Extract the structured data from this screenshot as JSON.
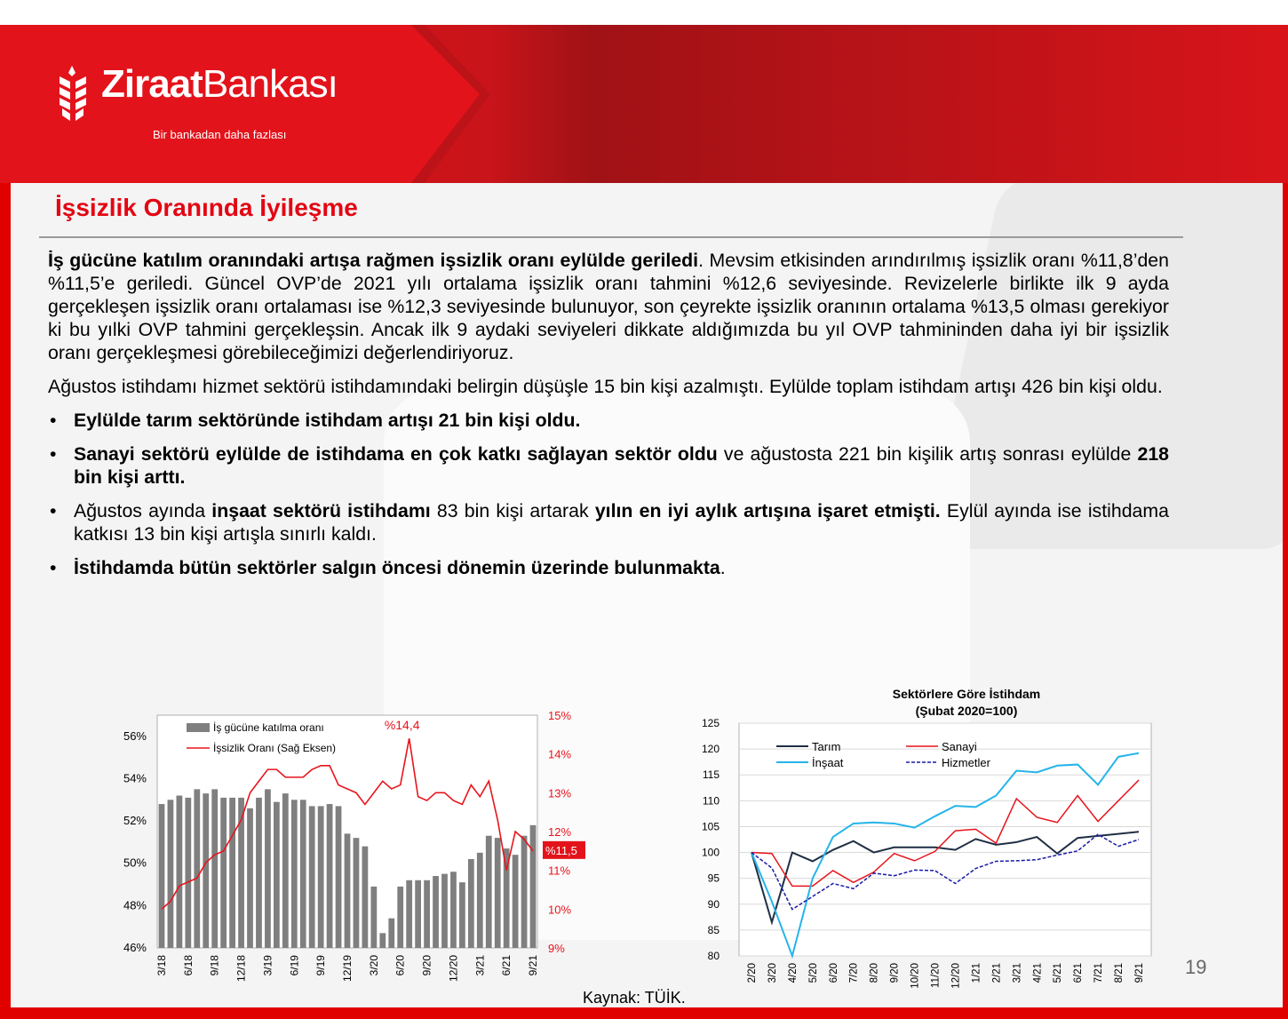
{
  "brand": {
    "name_bold": "Ziraat",
    "name_light": "Bankası",
    "tagline": "Bir bankadan daha fazlası",
    "logo_icon": "wheat-logo-icon"
  },
  "colors": {
    "brand_red": "#e30613",
    "bar_gray": "#7f7f7f",
    "tarim": "#1f2f45",
    "sanayi": "#e8141c",
    "insaat": "#25b4ea",
    "hizmetler": "#1a1aa8"
  },
  "title": "İşsizlik Oranında İyileşme",
  "para1": {
    "bold": "İş gücüne katılım oranındaki artışa rağmen işsizlik oranı eylülde geriledi",
    "rest": ". Mevsim etkisinden arındırılmış işsizlik oranı %11,8’den %11,5’e geriledi. Güncel OVP’de 2021 yılı ortalama işsizlik oranı tahmini %12,6 seviyesinde. Revizelerle birlikte ilk 9 ayda gerçekleşen işsizlik oranı ortalaması ise %12,3 seviyesinde bulunuyor, son çeyrekte işsizlik oranının ortalama %13,5 olması gerekiyor ki bu yılki OVP tahmini gerçekleşsin. Ancak ilk 9 aydaki seviyeleri dikkate aldığımızda bu yıl OVP tahmininden daha iyi bir işsizlik oranı gerçekleşmesi görebileceğimizi değerlendiriyoruz."
  },
  "para2": "Ağustos istihdamı hizmet sektörü istihdamındaki belirgin düşüşle 15 bin kişi azalmıştı. Eylülde toplam istihdam artışı 426 bin kişi oldu.",
  "bullet_char": "•",
  "bullets": {
    "b1": {
      "bold": "Eylülde tarım sektöründe istihdam artışı 21 bin kişi oldu."
    },
    "b2": {
      "bold1": "Sanayi sektörü eylülde de istihdama en çok katkı sağlayan sektör oldu",
      "normal1": " ve ağustosta 221 bin kişilik artış sonrası eylülde ",
      "bold2": "218 bin kişi arttı."
    },
    "b3": {
      "normal1": "Ağustos ayında ",
      "bold1": "inşaat sektörü istihdamı",
      "normal2": " 83 bin kişi artarak ",
      "bold2": "yılın en iyi aylık artışına işaret etmişti.",
      "normal3": " Eylül ayında ise istihdama katkısı 13 bin kişi artışla sınırlı kaldı."
    },
    "b4": {
      "bold": "İstihdamda bütün sektörler salgın öncesi dönemin üzerinde bulunmakta",
      "normal": "."
    }
  },
  "chart_data": [
    {
      "type": "bar",
      "title": "",
      "legend_placement": "top-left",
      "categories": [
        "3/18",
        "4/18",
        "5/18",
        "6/18",
        "7/18",
        "8/18",
        "9/18",
        "10/18",
        "11/18",
        "12/18",
        "1/19",
        "2/19",
        "3/19",
        "4/19",
        "5/19",
        "6/19",
        "7/19",
        "8/19",
        "9/19",
        "10/19",
        "11/19",
        "12/19",
        "1/20",
        "2/20",
        "3/20",
        "4/20",
        "5/20",
        "6/20",
        "7/20",
        "8/20",
        "9/20",
        "10/20",
        "11/20",
        "12/20",
        "1/21",
        "2/21",
        "3/21",
        "4/21",
        "5/21",
        "6/21",
        "7/21",
        "8/21",
        "9/21"
      ],
      "tick_labels": [
        "3/18",
        "6/18",
        "9/18",
        "12/18",
        "3/19",
        "6/19",
        "9/19",
        "12/19",
        "3/20",
        "6/20",
        "9/20",
        "12/20",
        "3/21",
        "6/21",
        "9/21"
      ],
      "series": [
        {
          "name": "İş gücüne katılma oranı",
          "axis": "left",
          "values": [
            52.8,
            53.0,
            53.2,
            53.1,
            53.5,
            53.3,
            53.5,
            53.1,
            53.1,
            53.1,
            52.6,
            53.1,
            53.5,
            52.9,
            53.3,
            53.0,
            53.0,
            52.7,
            52.7,
            52.8,
            52.7,
            51.4,
            51.2,
            50.8,
            48.9,
            46.7,
            47.4,
            48.9,
            49.2,
            49.2,
            49.2,
            49.4,
            49.5,
            49.6,
            49.1,
            50.2,
            50.5,
            51.3,
            51.2,
            50.7,
            50.4,
            51.3,
            51.8
          ]
        },
        {
          "name": "İşsizlik Oranı (Sağ Eksen)",
          "axis": "right",
          "values": [
            10.0,
            10.2,
            10.6,
            10.7,
            10.8,
            11.2,
            11.4,
            11.5,
            11.9,
            12.3,
            13.0,
            13.3,
            13.6,
            13.6,
            13.4,
            13.4,
            13.4,
            13.6,
            13.7,
            13.7,
            13.2,
            13.1,
            13.0,
            12.7,
            13.0,
            13.3,
            13.1,
            13.2,
            14.4,
            12.9,
            12.8,
            13.0,
            13.0,
            12.8,
            12.7,
            13.2,
            12.9,
            13.3,
            12.3,
            11.0,
            12.0,
            11.8,
            11.5
          ]
        }
      ],
      "y_left": {
        "min": 46,
        "max": 57,
        "ticks": [
          "46%",
          "48%",
          "50%",
          "52%",
          "54%",
          "56%"
        ]
      },
      "y_right": {
        "min": 9,
        "max": 15,
        "ticks": [
          "9%",
          "10%",
          "11%",
          "12%",
          "13%",
          "14%",
          "15%"
        ]
      },
      "annotations": {
        "peak": "%14,4",
        "last": "%11,5"
      }
    },
    {
      "type": "line",
      "title": "Sektörlere Göre İstihdam",
      "subtitle": "(Şubat 2020=100)",
      "legend_placement": "top-left",
      "categories": [
        "2/20",
        "3/20",
        "4/20",
        "5/20",
        "6/20",
        "7/20",
        "8/20",
        "9/20",
        "10/20",
        "11/20",
        "12/20",
        "1/21",
        "2/21",
        "3/21",
        "4/21",
        "5/21",
        "6/21",
        "7/21",
        "8/21",
        "9/21"
      ],
      "series": [
        {
          "name": "Tarım",
          "values": [
            100,
            86.5,
            100,
            98.3,
            100.5,
            102.2,
            100,
            101,
            101,
            101,
            100.5,
            102.6,
            101.5,
            102,
            103,
            99.8,
            102.8,
            103.2,
            103.6,
            104
          ]
        },
        {
          "name": "Sanayi",
          "values": [
            100,
            99.8,
            93.5,
            93.5,
            96.5,
            94.2,
            96.2,
            99.8,
            98.4,
            100.2,
            104.2,
            104.5,
            101.8,
            110.4,
            106.8,
            105.8,
            111,
            106,
            110,
            114
          ]
        },
        {
          "name": "İnşaat",
          "values": [
            100,
            90.5,
            80,
            95,
            103,
            105.6,
            105.8,
            105.6,
            104.8,
            107,
            109,
            108.8,
            111,
            115.8,
            115.5,
            116.8,
            117,
            113.1,
            118.5,
            119.2
          ]
        },
        {
          "name": "Hizmetler",
          "values": [
            100,
            97,
            89,
            91.5,
            94,
            93,
            96,
            95.5,
            96.6,
            96.5,
            94,
            96.9,
            98.3,
            98.4,
            98.6,
            99.5,
            100.3,
            103.5,
            101.2,
            102.5
          ]
        }
      ],
      "y": {
        "min": 80,
        "max": 125,
        "ticks": [
          "125",
          "120",
          "115",
          "110",
          "105",
          "100",
          "95",
          "90",
          "85",
          "80"
        ]
      },
      "grid": true
    }
  ],
  "source": "Kaynak: TÜİK.",
  "page_number": "19"
}
